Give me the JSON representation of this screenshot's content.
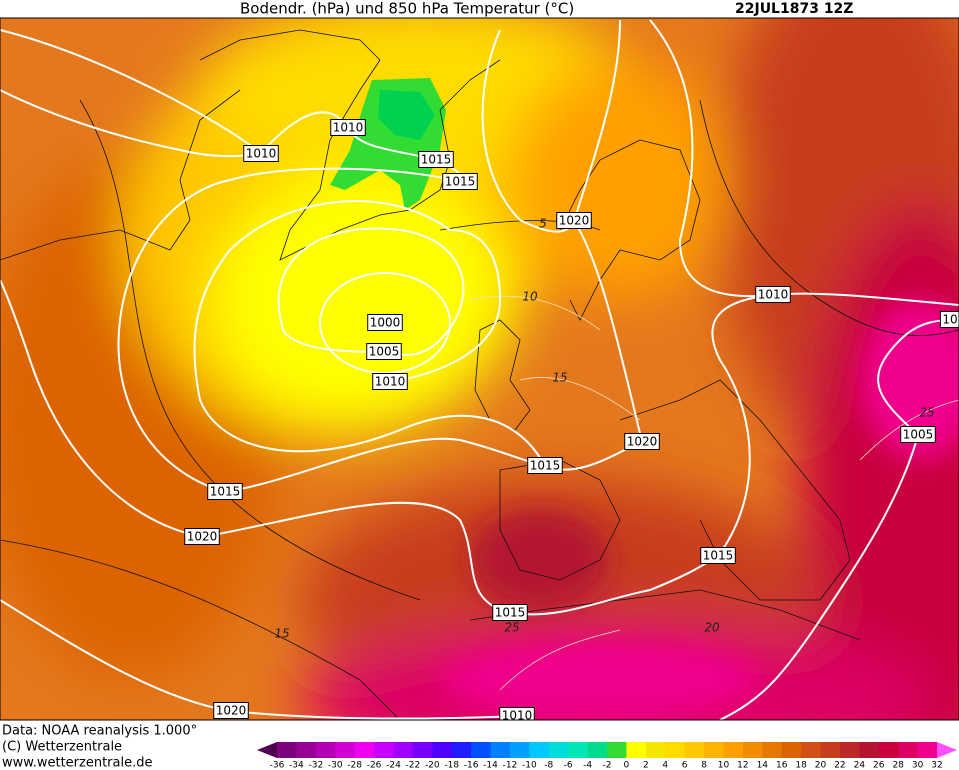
{
  "header": {
    "title": "Bodendr. (hPa) und 850 hPa Temperatur (°C)",
    "date": "22JUL1873 12Z"
  },
  "isobar_labels": [
    "1010",
    "1010",
    "1015",
    "1015",
    "1020",
    "1010",
    "1000",
    "1005",
    "1010",
    "1020",
    "1015",
    "1005",
    "1015",
    "1020",
    "1015",
    "1015",
    "1020",
    "1010",
    "10"
  ],
  "isotherm_labels": [
    "5",
    "10",
    "15",
    "25",
    "15",
    "20",
    "25"
  ],
  "footer": [
    "Data: NOAA reanalysis 1.000°",
    "(C) Wetterzentrale",
    "www.wetterzentrale.de"
  ],
  "colorbar_labels": [
    -36,
    -34,
    -32,
    -30,
    -28,
    -26,
    -24,
    -22,
    -20,
    -18,
    -16,
    -14,
    -12,
    -10,
    -8,
    -6,
    -4,
    -2,
    0,
    2,
    4,
    6,
    8,
    10,
    12,
    14,
    16,
    18,
    20,
    22,
    24,
    26,
    28,
    30,
    32
  ]
}
